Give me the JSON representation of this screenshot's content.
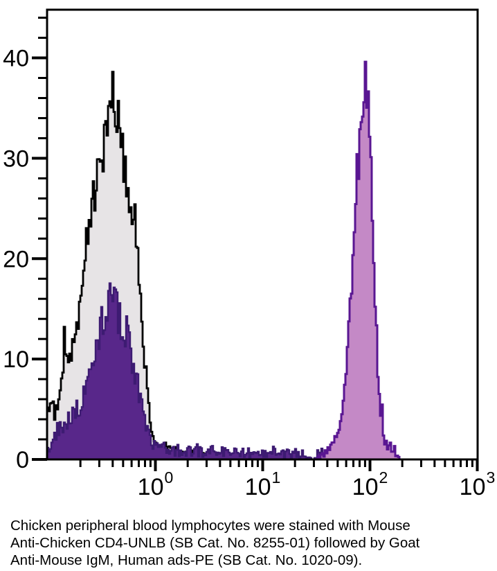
{
  "caption": {
    "lines": [
      "Chicken peripheral blood lymphocytes were stained with Mouse",
      "Anti-Chicken CD4-UNLB (SB Cat. No. 8255-01) followed by Goat",
      "Anti-Mouse IgM, Human ads-PE (SB Cat. No. 1020-09)."
    ]
  },
  "chart_data": {
    "type": "area",
    "subtype": "flow-cytometry-histogram-overlay",
    "title": "",
    "xlabel": "",
    "ylabel": "",
    "x_axis": {
      "scale": "log",
      "min": 0.098,
      "max": 1000,
      "decade_ticks": [
        {
          "base": "10",
          "exp": "0",
          "value": 1
        },
        {
          "base": "10",
          "exp": "1",
          "value": 10
        },
        {
          "base": "10",
          "exp": "2",
          "value": 100
        },
        {
          "base": "10",
          "exp": "3",
          "value": 1000
        }
      ],
      "minor_multiples": [
        2,
        3,
        4,
        5,
        6,
        7,
        8,
        9
      ]
    },
    "y_axis": {
      "min": 0,
      "max": 44.8,
      "major_ticks": [
        0,
        10,
        20,
        30,
        40
      ],
      "minor_step": 2
    },
    "grid": false,
    "legend": "none",
    "colors": {
      "frame": "#000000",
      "control_outline": "#000000",
      "control_fill": "#e7e4e6",
      "negative_fill": "#58278a",
      "negative_outline": "#3d1b72",
      "positive_fill": "#c489c6",
      "positive_outline": "#591692",
      "text": "#000000"
    },
    "series": [
      {
        "name": "background-control",
        "style": {
          "fill": "control_fill",
          "stroke": "control_outline",
          "stroke_width": 2.8
        },
        "peak_x": 0.43,
        "peak_y": 39.5,
        "seed": 7,
        "rel_noise": 0.08,
        "abs_noise": 0.5,
        "spike_p": 0.22,
        "spike_amp": 2.8,
        "clamp": 39.8,
        "envelope": [
          [
            -1.01,
            2.5
          ],
          [
            -0.97,
            6.5
          ],
          [
            -0.93,
            4
          ],
          [
            -0.88,
            8
          ],
          [
            -0.84,
            10.5
          ],
          [
            -0.8,
            9
          ],
          [
            -0.76,
            12
          ],
          [
            -0.72,
            13.5
          ],
          [
            -0.68,
            16
          ],
          [
            -0.64,
            20
          ],
          [
            -0.6,
            23
          ],
          [
            -0.56,
            26
          ],
          [
            -0.52,
            28.5
          ],
          [
            -0.48,
            30.5
          ],
          [
            -0.44,
            32
          ],
          [
            -0.4,
            33.5
          ],
          [
            -0.37,
            35.5
          ],
          [
            -0.34,
            33
          ],
          [
            -0.32,
            30.5
          ],
          [
            -0.29,
            29
          ],
          [
            -0.26,
            27.5
          ],
          [
            -0.23,
            25.5
          ],
          [
            -0.2,
            23.5
          ],
          [
            -0.17,
            21
          ],
          [
            -0.14,
            16
          ],
          [
            -0.11,
            11
          ],
          [
            -0.08,
            7
          ],
          [
            -0.05,
            4
          ],
          [
            -0.02,
            2.2
          ],
          [
            0.02,
            1.2
          ],
          [
            0.08,
            0.8
          ],
          [
            0.15,
            0.9
          ],
          [
            0.25,
            0.5
          ],
          [
            0.35,
            0.3
          ],
          [
            0.45,
            0.15
          ],
          [
            0.5,
            0
          ]
        ]
      },
      {
        "name": "cd4-negative-population",
        "style": {
          "fill": "negative_fill",
          "stroke": "negative_outline",
          "stroke_width": 2.4
        },
        "peak_x": 0.42,
        "peak_y": 18.5,
        "seed": 13,
        "rel_noise": 0.12,
        "abs_noise": 0.45,
        "spike_p": 0.2,
        "spike_amp": 1.8,
        "clamp": 18.7,
        "envelope": [
          [
            -1.01,
            1
          ],
          [
            -0.95,
            1.8
          ],
          [
            -0.9,
            2.5
          ],
          [
            -0.85,
            3
          ],
          [
            -0.8,
            3.5
          ],
          [
            -0.75,
            4.5
          ],
          [
            -0.7,
            5.5
          ],
          [
            -0.65,
            7
          ],
          [
            -0.6,
            9
          ],
          [
            -0.55,
            11.5
          ],
          [
            -0.5,
            13.5
          ],
          [
            -0.46,
            15
          ],
          [
            -0.42,
            16
          ],
          [
            -0.38,
            15.5
          ],
          [
            -0.34,
            14.5
          ],
          [
            -0.3,
            13.5
          ],
          [
            -0.27,
            12.5
          ],
          [
            -0.24,
            11
          ],
          [
            -0.21,
            9.5
          ],
          [
            -0.18,
            8
          ],
          [
            -0.15,
            6.5
          ],
          [
            -0.12,
            5
          ],
          [
            -0.09,
            3.5
          ],
          [
            -0.05,
            2.2
          ],
          [
            0,
            1.2
          ],
          [
            0.1,
            0.9
          ],
          [
            0.3,
            0.8
          ],
          [
            0.5,
            0.7
          ],
          [
            0.7,
            0.7
          ],
          [
            0.9,
            0.6
          ],
          [
            1.1,
            0.6
          ],
          [
            1.3,
            0.5
          ],
          [
            1.45,
            0.4
          ],
          [
            1.55,
            0.2
          ],
          [
            1.6,
            0
          ]
        ]
      },
      {
        "name": "cd4-positive-population",
        "style": {
          "fill": "positive_fill",
          "stroke": "positive_outline",
          "stroke_width": 3
        },
        "peak_x": 90,
        "peak_y": 42.8,
        "seed": 99,
        "rel_noise": 0.06,
        "abs_noise": 0.35,
        "spike_p": 0.16,
        "spike_amp": 3.0,
        "clamp": 42.8,
        "envelope": [
          [
            1.5,
            0.2
          ],
          [
            1.56,
            0.5
          ],
          [
            1.6,
            0.9
          ],
          [
            1.64,
            1.3
          ],
          [
            1.68,
            2
          ],
          [
            1.72,
            3.5
          ],
          [
            1.76,
            6.5
          ],
          [
            1.8,
            12
          ],
          [
            1.84,
            19
          ],
          [
            1.88,
            27
          ],
          [
            1.91,
            33
          ],
          [
            1.94,
            37.5
          ],
          [
            1.96,
            39.5
          ],
          [
            1.98,
            36
          ],
          [
            2.0,
            31
          ],
          [
            2.02,
            25
          ],
          [
            2.04,
            18
          ],
          [
            2.06,
            12
          ],
          [
            2.08,
            7
          ],
          [
            2.1,
            4
          ],
          [
            2.13,
            2
          ],
          [
            2.16,
            1.2
          ],
          [
            2.2,
            0.8
          ],
          [
            2.24,
            0.4
          ],
          [
            2.28,
            0
          ]
        ]
      }
    ]
  }
}
